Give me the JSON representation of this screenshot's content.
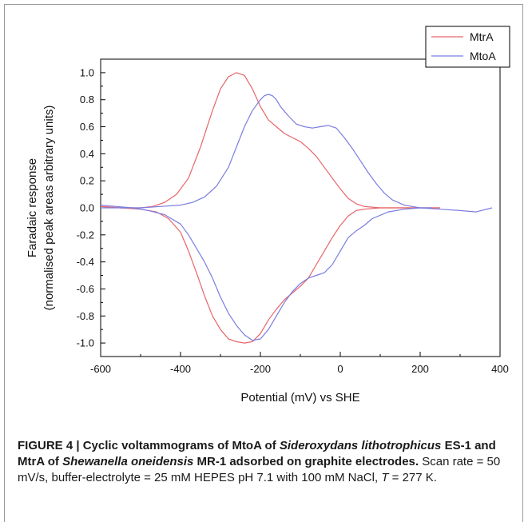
{
  "chart_data": {
    "type": "line",
    "title": "",
    "xlabel": "Potential (mV) vs SHE",
    "ylabel_line1": "Faradaic response",
    "ylabel_line2": "(normalised peak areas arbitrary units)",
    "xlim": [
      -600,
      400
    ],
    "ylim": [
      -1.1,
      1.1
    ],
    "xticks": [
      -600,
      -400,
      -200,
      0,
      200,
      400
    ],
    "yticks": [
      1.0,
      0.8,
      0.6,
      0.4,
      0.2,
      0.0,
      -0.2,
      -0.4,
      -0.6,
      -0.8,
      -1.0
    ],
    "xtick_labels": [
      "-600",
      "-400",
      "-200",
      "0",
      "200",
      "400"
    ],
    "ytick_labels": [
      "1.0",
      "0.8",
      "0.6",
      "0.4",
      "0.2",
      "0.0",
      "-0.2",
      "-0.4",
      "-0.6",
      "-0.8",
      "-1.0"
    ],
    "grid": false,
    "legend_position": "top-right",
    "series": [
      {
        "name": "MtrA",
        "color": "#e8646a",
        "oxidative": {
          "x": [
            -600,
            -550,
            -500,
            -470,
            -440,
            -410,
            -380,
            -350,
            -320,
            -300,
            -280,
            -260,
            -240,
            -220,
            -200,
            -180,
            -160,
            -140,
            -120,
            -100,
            -80,
            -60,
            -40,
            -20,
            0,
            20,
            40,
            60,
            100,
            150,
            200,
            250
          ],
          "y": [
            0.01,
            0.0,
            0.0,
            0.01,
            0.04,
            0.1,
            0.22,
            0.45,
            0.72,
            0.88,
            0.97,
            1.0,
            0.98,
            0.88,
            0.75,
            0.65,
            0.6,
            0.55,
            0.52,
            0.49,
            0.44,
            0.38,
            0.3,
            0.22,
            0.14,
            0.07,
            0.03,
            0.01,
            0.0,
            0.0,
            0.0,
            0.0
          ]
        },
        "reductive": {
          "x": [
            250,
            200,
            150,
            100,
            60,
            40,
            20,
            0,
            -20,
            -40,
            -60,
            -80,
            -100,
            -120,
            -140,
            -160,
            -180,
            -200,
            -220,
            -240,
            -260,
            -280,
            -300,
            -320,
            -340,
            -360,
            -380,
            -400,
            -430,
            -460,
            -500,
            -550,
            -600
          ],
          "y": [
            0.0,
            0.0,
            0.0,
            0.0,
            -0.01,
            -0.02,
            -0.06,
            -0.13,
            -0.22,
            -0.32,
            -0.42,
            -0.52,
            -0.58,
            -0.63,
            -0.68,
            -0.75,
            -0.83,
            -0.93,
            -0.99,
            -1.0,
            -0.99,
            -0.97,
            -0.9,
            -0.8,
            -0.65,
            -0.48,
            -0.32,
            -0.18,
            -0.08,
            -0.03,
            -0.01,
            0.0,
            0.01
          ]
        }
      },
      {
        "name": "MtoA",
        "color": "#7b7de0",
        "oxidative": {
          "x": [
            -600,
            -550,
            -500,
            -450,
            -400,
            -370,
            -340,
            -310,
            -280,
            -260,
            -240,
            -220,
            -200,
            -190,
            -180,
            -170,
            -160,
            -150,
            -130,
            -110,
            -90,
            -70,
            -50,
            -30,
            -10,
            10,
            30,
            50,
            70,
            90,
            110,
            130,
            160,
            200,
            250,
            300,
            340,
            380
          ],
          "y": [
            0.0,
            0.0,
            0.0,
            0.01,
            0.02,
            0.04,
            0.08,
            0.16,
            0.3,
            0.45,
            0.6,
            0.72,
            0.8,
            0.83,
            0.84,
            0.83,
            0.8,
            0.75,
            0.68,
            0.62,
            0.6,
            0.59,
            0.6,
            0.61,
            0.59,
            0.52,
            0.44,
            0.35,
            0.26,
            0.18,
            0.11,
            0.06,
            0.02,
            0.0,
            -0.01,
            -0.02,
            -0.03,
            0.0
          ]
        },
        "reductive": {
          "x": [
            230,
            200,
            160,
            120,
            80,
            60,
            40,
            20,
            0,
            -20,
            -40,
            -60,
            -80,
            -100,
            -120,
            -140,
            -160,
            -180,
            -200,
            -220,
            -240,
            -260,
            -280,
            -300,
            -320,
            -340,
            -360,
            -380,
            -400,
            -440,
            -480,
            -520,
            -560,
            -600
          ],
          "y": [
            0.0,
            0.0,
            -0.01,
            -0.03,
            -0.08,
            -0.13,
            -0.17,
            -0.22,
            -0.32,
            -0.42,
            -0.48,
            -0.5,
            -0.52,
            -0.56,
            -0.62,
            -0.7,
            -0.8,
            -0.9,
            -0.97,
            -0.98,
            -0.94,
            -0.87,
            -0.78,
            -0.66,
            -0.52,
            -0.4,
            -0.3,
            -0.2,
            -0.12,
            -0.05,
            -0.02,
            0.0,
            0.01,
            0.02
          ]
        }
      }
    ]
  },
  "caption": {
    "label": "FIGURE 4 | ",
    "title_part1": "Cyclic voltammograms of MtoA of ",
    "species1": "Sideroxydans lithotrophicus",
    "title_part2": " ES-1 and MtrA of ",
    "species2": "Shewanella oneidensis",
    "title_part3": " MR-1 adsorbed on graphite electrodes.",
    "body": " Scan rate = 50 mV/s, buffer-electrolyte = 25 mM HEPES pH 7.1 with 100 mM NaCl, ",
    "temp_symbol": "T",
    "temp_value": " = 277 K."
  }
}
